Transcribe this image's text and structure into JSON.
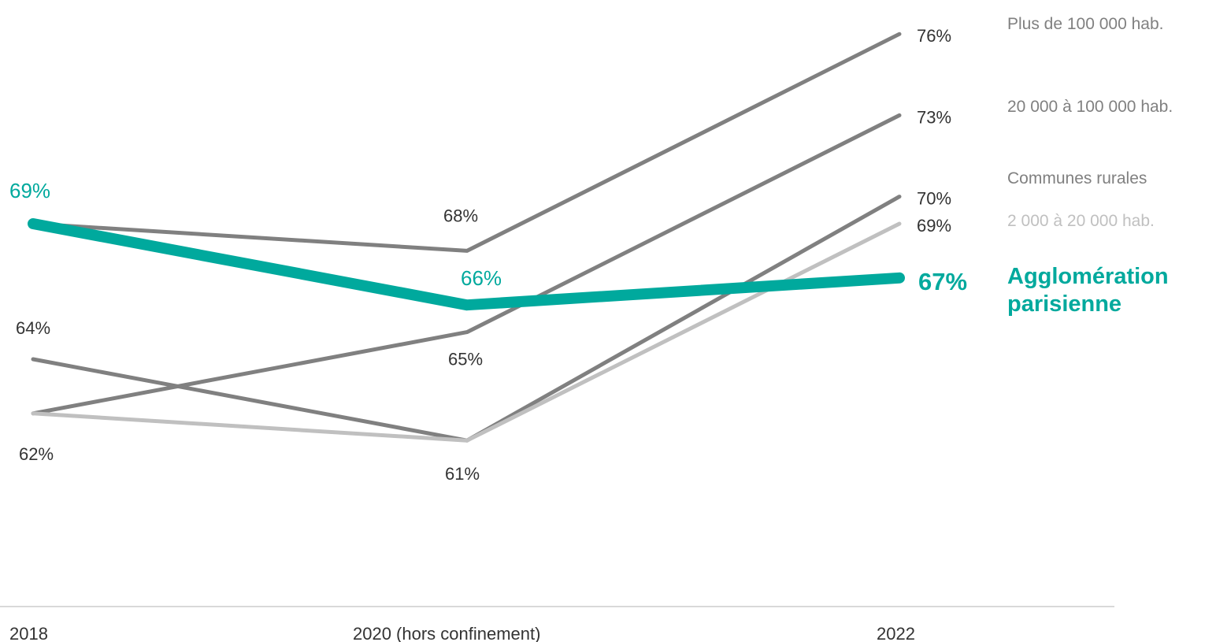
{
  "chart_data": {
    "type": "line",
    "title": "",
    "xlabel": "",
    "ylabel": "",
    "categories": [
      "2018",
      "2020 (hors confinement)",
      "2022"
    ],
    "ylim": [
      55,
      78
    ],
    "grid": false,
    "legend": "right, labels at line ends",
    "series": [
      {
        "name": "Plus de 100 000 hab.",
        "values": [
          69,
          68,
          76
        ],
        "value_labels": [
          "",
          "68%",
          "76%"
        ],
        "color": "#808080",
        "highlight": false
      },
      {
        "name": "20 000 à 100 000 hab.",
        "values": [
          62,
          65,
          73
        ],
        "value_labels": [
          "",
          "65%",
          "73%"
        ],
        "color": "#808080",
        "highlight": false
      },
      {
        "name": "Communes rurales",
        "values": [
          64,
          61,
          70
        ],
        "value_labels": [
          "64%",
          "61%",
          "70%"
        ],
        "color": "#808080",
        "highlight": false
      },
      {
        "name": "2 000 à 20 000 hab.",
        "values": [
          62,
          61,
          69
        ],
        "value_labels": [
          "62%",
          "",
          "69%"
        ],
        "color": "#c0c0c0",
        "highlight": false
      },
      {
        "name": "Agglomération parisienne",
        "name_lines": [
          "Agglomération",
          "parisienne"
        ],
        "values": [
          69,
          66,
          67
        ],
        "value_labels": [
          "69%",
          "66%",
          "67%"
        ],
        "color": "#00a99d",
        "highlight": true
      }
    ]
  }
}
